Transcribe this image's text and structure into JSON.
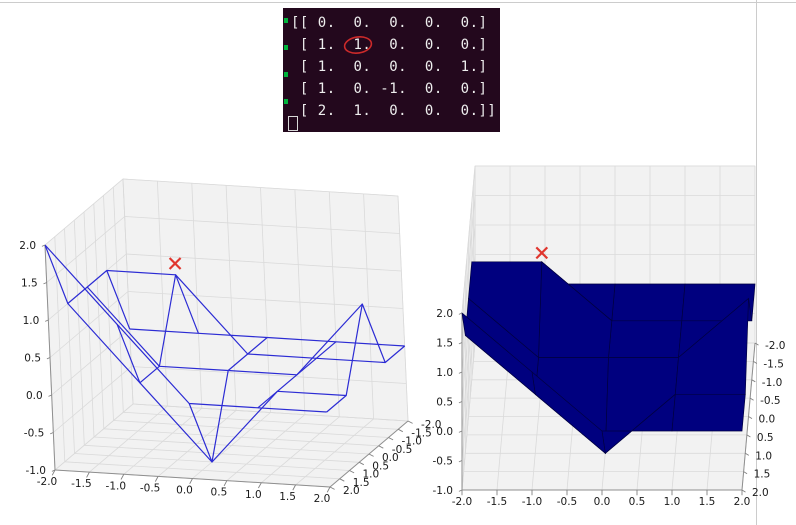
{
  "window": {
    "background": "#ffffff",
    "border_color": "#cccccc"
  },
  "terminal": {
    "background": "#23081d",
    "text_color": "#eeeeee",
    "lines": [
      "[[ 0.  0.  0.  0.  0.]",
      " [ 1.  1.  0.  0.  0.]",
      " [ 1.  0.  0.  0.  1.]",
      " [ 1.  0. -1.  0.  0.]",
      " [ 2.  1.  0.  0.  0.]]"
    ],
    "wrap_marker_color": "#00b43c",
    "cursor": {
      "shape": "hollow-block",
      "color": "#d8d8d8"
    },
    "annotation": {
      "type": "hand-drawn-ellipse",
      "color": "#cc2a2a",
      "circled_value": "1.",
      "row": 2,
      "column": 2
    }
  },
  "chart_data": [
    {
      "type": "surface3d",
      "style": "wireframe",
      "title": "",
      "x": [
        -2,
        -1,
        0,
        1,
        2
      ],
      "y": [
        -2,
        -1,
        0,
        1,
        2
      ],
      "z": [
        [
          0,
          0,
          0,
          0,
          0
        ],
        [
          1,
          1,
          0,
          0,
          0
        ],
        [
          1,
          0,
          0,
          0,
          1
        ],
        [
          1,
          0,
          -1,
          0,
          0
        ],
        [
          2,
          1,
          0,
          0,
          0
        ]
      ],
      "xlim": [
        -2,
        2
      ],
      "ylim": [
        -2,
        2
      ],
      "zlim": [
        -1,
        2
      ],
      "y_axis_reversed": true,
      "grid": true,
      "xticks": [
        -2,
        -1.5,
        -1,
        -0.5,
        0,
        0.5,
        1,
        1.5,
        2
      ],
      "xtick_labels": [
        "-2.0",
        "-1.5",
        "-1.0",
        "-0.5",
        "0.0",
        "0.5",
        "1.0",
        "1.5",
        "2.0"
      ],
      "yticks": [
        -2,
        -1.5,
        -1,
        -0.5,
        0,
        0.5,
        1,
        1.5,
        2
      ],
      "ytick_labels": [
        "-2.0",
        "-1.5",
        "-1.0",
        "-0.5",
        "0.0",
        "0.5",
        "1.0",
        "1.5",
        "2.0"
      ],
      "zticks": [
        -1,
        -0.5,
        0,
        0.5,
        1,
        1.5,
        2
      ],
      "ztick_labels": [
        "-1.0",
        "-0.5",
        "0.0",
        "0.5",
        "1.0",
        "1.5",
        "2.0"
      ],
      "line_color": "#2c2cd4",
      "pane_color": "#f2f2f2",
      "grid_color": "#dadada",
      "tick_label_color": "#1a1a1a",
      "marker": {
        "symbol": "x",
        "x": -1,
        "y": -1,
        "z": 1.15,
        "color": "#e0362e"
      }
    },
    {
      "type": "surface3d",
      "style": "filled",
      "title": "",
      "x": [
        -2,
        -1,
        0,
        1,
        2
      ],
      "y": [
        -2,
        -1,
        0,
        1,
        2
      ],
      "z": [
        [
          0,
          0,
          0,
          0,
          0
        ],
        [
          1,
          1,
          0,
          0,
          0
        ],
        [
          1,
          0,
          0,
          0,
          1
        ],
        [
          1,
          0,
          -1,
          0,
          0
        ],
        [
          2,
          1,
          0,
          0,
          0
        ]
      ],
      "xlim": [
        -2,
        2
      ],
      "ylim": [
        -2,
        2
      ],
      "zlim": [
        -1,
        2
      ],
      "y_axis_reversed": true,
      "grid": true,
      "xticks": [
        -2,
        -1.5,
        -1,
        -0.5,
        0,
        0.5,
        1,
        1.5,
        2
      ],
      "xtick_labels": [
        "-2.0",
        "-1.5",
        "-1.0",
        "-0.5",
        "0.0",
        "0.5",
        "1.0",
        "1.5",
        "2.0"
      ],
      "yticks": [
        -2,
        -1.5,
        -1,
        -0.5,
        0,
        0.5,
        1,
        1.5,
        2
      ],
      "ytick_labels": [
        "-2.0",
        "-1.5",
        "-1.0",
        "-0.5",
        "0.0",
        "0.5",
        "1.0",
        "1.5",
        "2.0"
      ],
      "zticks": [
        -1,
        -0.5,
        0,
        0.5,
        1,
        1.5,
        2
      ],
      "ztick_labels": [
        "-1.0",
        "-0.5",
        "0.0",
        "0.5",
        "1.0",
        "1.5",
        "2.0"
      ],
      "surface_color": "#00007f",
      "edge_color": "#000040",
      "pane_color": "#f2f2f2",
      "grid_color": "#dadada",
      "tick_label_color": "#1a1a1a",
      "marker": {
        "symbol": "x",
        "x": -1,
        "y": -1,
        "z": 1.15,
        "color": "#e0362e"
      }
    }
  ]
}
